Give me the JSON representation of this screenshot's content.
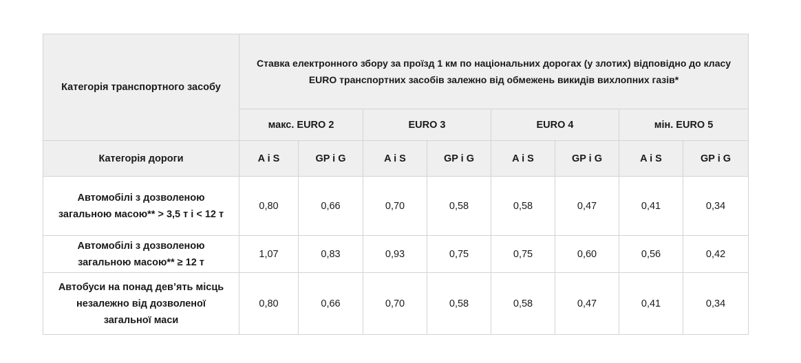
{
  "table": {
    "header": {
      "corner": "Категорія транспортного засобу",
      "group": "Ставка електронного збору за проїзд 1 км по національних дорогах (у злотих) відповідно до класу EURO транспортних засобів залежно від обмежень викидів вихлопних газів*",
      "classes": [
        "макс. EURO 2",
        "EURO 3",
        "EURO 4",
        "мін. EURO 5"
      ],
      "road_label": "Категорія дороги",
      "roads": [
        "A i S",
        "GP i G",
        "A i S",
        "GP i G",
        "A i S",
        "GP i G",
        "A i S",
        "GP i G"
      ]
    },
    "rows": [
      {
        "label": "Автомобілі з дозволеною загальною масою** > 3,5 т і < 12 т",
        "values": [
          "0,80",
          "0,66",
          "0,70",
          "0,58",
          "0,58",
          "0,47",
          "0,41",
          "0,34"
        ]
      },
      {
        "label": "Автомобілі з дозволеною загальною масою** ≥ 12 т",
        "values": [
          "1,07",
          "0,83",
          "0,93",
          "0,75",
          "0,75",
          "0,60",
          "0,56",
          "0,42"
        ]
      },
      {
        "label": "Автобуси на понад дев’ять місць незалежно від дозволеної загальної маси",
        "values": [
          "0,80",
          "0,66",
          "0,70",
          "0,58",
          "0,58",
          "0,47",
          "0,41",
          "0,34"
        ]
      }
    ]
  }
}
